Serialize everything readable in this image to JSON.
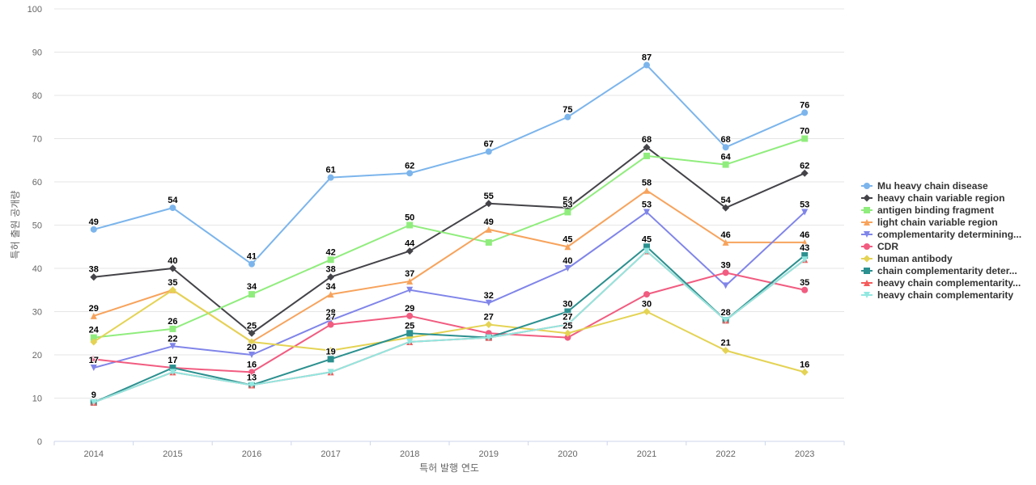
{
  "chart_data": {
    "type": "line",
    "title": "",
    "xlabel": "특허 발행 연도",
    "ylabel": "특허 출원 공개량",
    "x": [
      "2014",
      "2015",
      "2016",
      "2017",
      "2018",
      "2019",
      "2020",
      "2021",
      "2022",
      "2023"
    ],
    "ylim": [
      0,
      100
    ],
    "yticks": [
      0,
      10,
      20,
      30,
      40,
      50,
      60,
      70,
      80,
      90,
      100
    ],
    "grid": true,
    "legend_position": "right",
    "series": [
      {
        "name": "Mu heavy chain disease",
        "color": "#7cb5ec",
        "marker": "circle",
        "values": [
          49,
          54,
          41,
          61,
          62,
          67,
          75,
          87,
          68,
          76
        ]
      },
      {
        "name": "heavy chain variable region",
        "color": "#434348",
        "marker": "diamond",
        "values": [
          38,
          40,
          25,
          38,
          44,
          55,
          54,
          68,
          54,
          62
        ]
      },
      {
        "name": "antigen binding fragment",
        "color": "#90ed7d",
        "marker": "square",
        "values": [
          24,
          26,
          34,
          42,
          50,
          46,
          53,
          66,
          64,
          70
        ]
      },
      {
        "name": "light chain variable region",
        "color": "#f7a35c",
        "marker": "triangle",
        "values": [
          29,
          35,
          23,
          34,
          37,
          49,
          45,
          58,
          46,
          46
        ]
      },
      {
        "name": "complementarity determining...",
        "color": "#8085e9",
        "marker": "triangle-down",
        "values": [
          17,
          22,
          20,
          28,
          35,
          32,
          40,
          53,
          36,
          53
        ]
      },
      {
        "name": "CDR",
        "color": "#f15c80",
        "marker": "circle",
        "values": [
          19,
          17,
          16,
          27,
          29,
          25,
          24,
          34,
          39,
          35
        ]
      },
      {
        "name": "human antibody",
        "color": "#e4d354",
        "marker": "diamond",
        "values": [
          23,
          35,
          23,
          21,
          24,
          27,
          25,
          30,
          21,
          16
        ]
      },
      {
        "name": "chain complementarity deter...",
        "color": "#2b908f",
        "marker": "square",
        "values": [
          9,
          17,
          13,
          19,
          25,
          24,
          30,
          45,
          28,
          43
        ]
      },
      {
        "name": "heavy chain complementarity...",
        "color": "#f45b5b",
        "marker": "triangle",
        "values": [
          9,
          16,
          13,
          16,
          23,
          24,
          27,
          44,
          28,
          42
        ]
      },
      {
        "name": "heavy chain complementarity",
        "color": "#91e8e1",
        "marker": "triangle-down",
        "values": [
          9,
          16,
          13,
          16,
          23,
          24,
          27,
          44,
          28,
          42
        ]
      }
    ],
    "data_labels": [
      {
        "series": 0,
        "points": [
          0,
          1,
          2,
          3,
          4,
          5,
          6,
          7,
          8,
          9
        ]
      },
      {
        "series": 1,
        "points": [
          0,
          1,
          2,
          3,
          4,
          5,
          6,
          7,
          8,
          9
        ]
      },
      {
        "series": 2,
        "points": [
          0,
          1,
          2,
          3,
          4,
          6,
          8,
          9
        ]
      },
      {
        "series": 3,
        "points": [
          0,
          1,
          3,
          4,
          5,
          6,
          7,
          8,
          9
        ]
      },
      {
        "series": 4,
        "points": [
          0,
          1,
          2,
          3,
          5,
          6,
          7,
          9
        ]
      },
      {
        "series": 5,
        "points": [
          2,
          3,
          4,
          8,
          9
        ]
      },
      {
        "series": 6,
        "points": [
          5,
          6,
          7,
          8,
          9
        ]
      },
      {
        "series": 7,
        "points": [
          0,
          1,
          3,
          4,
          6,
          7,
          8,
          9
        ]
      },
      {
        "series": 8,
        "points": [
          2,
          6
        ]
      }
    ]
  }
}
